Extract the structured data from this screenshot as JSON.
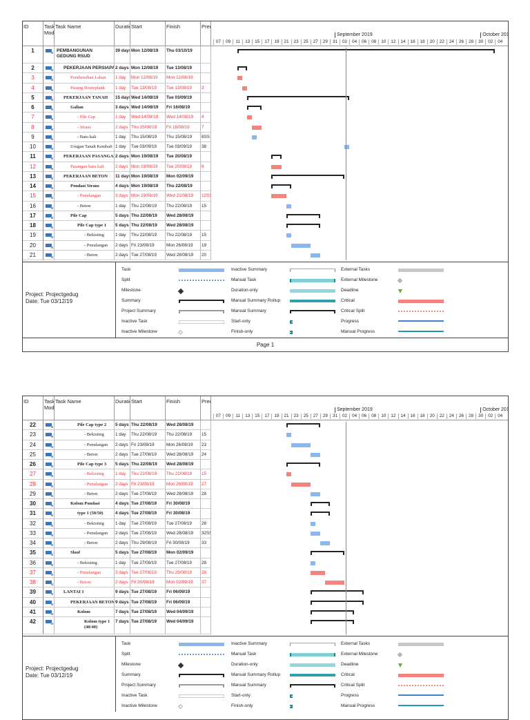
{
  "columns": {
    "id": "ID",
    "mode": "Task Mode",
    "name": "Task Name",
    "duration": "Duration",
    "start": "Start",
    "finish": "Finish",
    "pred": "Predecessors"
  },
  "timeline": {
    "months": [
      {
        "label": "September 2019",
        "date": "01/09/19"
      },
      {
        "label": "October 2019",
        "date": "01/10/19"
      }
    ],
    "day_ticks": [
      "07",
      "09",
      "11",
      "13",
      "15",
      "17",
      "19",
      "21",
      "23",
      "25",
      "27",
      "29",
      "31",
      "02",
      "04",
      "06",
      "08",
      "10",
      "12",
      "14",
      "16",
      "18",
      "20",
      "22",
      "24",
      "26",
      "28",
      "30",
      "02",
      "04"
    ],
    "first_tick_date": "07/08/19"
  },
  "colors": {
    "task": "#8ab8ec",
    "critical": "#f4837d",
    "summary": "#222222",
    "critical_text": "#f0323a"
  },
  "project": {
    "name": "Project: Projectgedug",
    "date": "Date: Tue 03/12/19"
  },
  "legend": [
    {
      "label": "Task",
      "type": "task"
    },
    {
      "label": "Split",
      "type": "split"
    },
    {
      "label": "Milestone",
      "type": "milestone"
    },
    {
      "label": "Summary",
      "type": "summary"
    },
    {
      "label": "Project Summary",
      "type": "project-summary"
    },
    {
      "label": "Inactive Task",
      "type": "inactive-task"
    },
    {
      "label": "Inactive Milestone",
      "type": "inactive-milestone"
    },
    {
      "label": "Inactive Summary",
      "type": "inactive-summary"
    },
    {
      "label": "Manual Task",
      "type": "manual-task"
    },
    {
      "label": "Duration-only",
      "type": "duration-only"
    },
    {
      "label": "Manual Summary Rollup",
      "type": "manual-summary-rollup"
    },
    {
      "label": "Manual Summary",
      "type": "manual-summary"
    },
    {
      "label": "Start-only",
      "type": "start-only"
    },
    {
      "label": "Finish-only",
      "type": "finish-only"
    },
    {
      "label": "External Tasks",
      "type": "external-tasks"
    },
    {
      "label": "External Milestone",
      "type": "external-milestone"
    },
    {
      "label": "Deadline",
      "type": "deadline"
    },
    {
      "label": "Critical",
      "type": "critical"
    },
    {
      "label": "Critical Split",
      "type": "critical-split"
    },
    {
      "label": "Progress",
      "type": "progress"
    },
    {
      "label": "Manual Progress",
      "type": "manual-progress"
    }
  ],
  "pages": [
    {
      "label": "Page 1",
      "tasks": [
        {
          "id": "1",
          "name": "PEMBANGUNAN GEDUNG RSUD",
          "duration": "39 days",
          "start": "Mon 12/08/19",
          "finish": "Thu 03/10/19",
          "pred": "",
          "kind": "summary",
          "level": 0
        },
        {
          "id": "2",
          "name": "PEKERJAAN PERSIAPAN",
          "duration": "2 days",
          "start": "Mon 12/08/19",
          "finish": "Tue 13/08/19",
          "pred": "",
          "kind": "summary",
          "level": 1
        },
        {
          "id": "3",
          "name": "Pembersihan Lahan",
          "duration": "1 day",
          "start": "Mon 12/08/19",
          "finish": "Mon 12/08/19",
          "pred": "",
          "kind": "critical",
          "level": 2
        },
        {
          "id": "4",
          "name": "Pasang Bouwplank",
          "duration": "1 day",
          "start": "Tue 13/08/19",
          "finish": "Tue 13/08/19",
          "pred": "3",
          "kind": "critical",
          "level": 2
        },
        {
          "id": "5",
          "name": "PEKERJAAN TANAH",
          "duration": "15 days",
          "start": "Wed 14/08/19",
          "finish": "Tue 03/09/19",
          "pred": "",
          "kind": "summary",
          "level": 1
        },
        {
          "id": "6",
          "name": "Galian",
          "duration": "3 days",
          "start": "Wed 14/08/19",
          "finish": "Fri 16/08/19",
          "pred": "",
          "kind": "summary",
          "level": 2
        },
        {
          "id": "7",
          "name": "- Pile Cap",
          "duration": "1 day",
          "start": "Wed 14/08/19",
          "finish": "Wed 14/08/19",
          "pred": "4",
          "kind": "critical",
          "level": 3
        },
        {
          "id": "8",
          "name": "- Straus",
          "duration": "2 days",
          "start": "Thu 15/08/19",
          "finish": "Fri 16/08/19",
          "pred": "7",
          "kind": "critical",
          "level": 3
        },
        {
          "id": "9",
          "name": "- Batu kali",
          "duration": "1 day",
          "start": "Thu 15/08/19",
          "finish": "Thu 15/08/19",
          "pred": "8SS",
          "kind": "task",
          "level": 3
        },
        {
          "id": "10",
          "name": "Urugan Tanah Kembali",
          "duration": "1 day",
          "start": "Tue 03/09/19",
          "finish": "Tue 03/09/19",
          "pred": "38",
          "kind": "task",
          "level": 2
        },
        {
          "id": "11",
          "name": "PEKERJAAN PASANGAN",
          "duration": "2 days",
          "start": "Mon 19/08/19",
          "finish": "Tue 20/08/19",
          "pred": "",
          "kind": "summary",
          "level": 1
        },
        {
          "id": "12",
          "name": "Pasangan batu kali",
          "duration": "2 days",
          "start": "Mon 19/08/19",
          "finish": "Tue 20/08/19",
          "pred": "8",
          "kind": "critical",
          "level": 2
        },
        {
          "id": "13",
          "name": "PEKERJAAN BETON",
          "duration": "11 days",
          "start": "Mon 19/08/19",
          "finish": "Mon 02/09/19",
          "pred": "",
          "kind": "summary",
          "level": 1
        },
        {
          "id": "14",
          "name": "Pondasi Straus",
          "duration": "4 days",
          "start": "Mon 19/08/19",
          "finish": "Thu 22/08/19",
          "pred": "",
          "kind": "summary",
          "level": 2
        },
        {
          "id": "15",
          "name": "- Penulangan",
          "duration": "3 days",
          "start": "Mon 19/08/19",
          "finish": "Wed 21/08/19",
          "pred": "12SS",
          "kind": "critical",
          "level": 3
        },
        {
          "id": "16",
          "name": "- Beton",
          "duration": "1 day",
          "start": "Thu 22/08/19",
          "finish": "Thu 22/08/19",
          "pred": "15",
          "kind": "task",
          "level": 3
        },
        {
          "id": "17",
          "name": "Pile Cap",
          "duration": "5 days",
          "start": "Thu 22/08/19",
          "finish": "Wed 28/08/19",
          "pred": "",
          "kind": "summary",
          "level": 2
        },
        {
          "id": "18",
          "name": "Pile Cap type 1",
          "duration": "5 days",
          "start": "Thu 22/08/19",
          "finish": "Wed 28/08/19",
          "pred": "",
          "kind": "summary",
          "level": 3
        },
        {
          "id": "19",
          "name": "- Bekisting",
          "duration": "1 day",
          "start": "Thu 22/08/19",
          "finish": "Thu 22/08/19",
          "pred": "15",
          "kind": "task",
          "level": 4
        },
        {
          "id": "20",
          "name": "- Penulangan",
          "duration": "2 days",
          "start": "Fri 23/08/19",
          "finish": "Mon 26/08/19",
          "pred": "19",
          "kind": "task",
          "level": 4
        },
        {
          "id": "21",
          "name": "- Beton",
          "duration": "2 days",
          "start": "Tue 27/08/19",
          "finish": "Wed 28/08/19",
          "pred": "20",
          "kind": "task",
          "level": 4
        }
      ]
    },
    {
      "label": "",
      "tasks": [
        {
          "id": "22",
          "name": "Pile Cap type 2",
          "duration": "5 days",
          "start": "Thu 22/08/19",
          "finish": "Wed 28/08/19",
          "pred": "",
          "kind": "summary",
          "level": 3
        },
        {
          "id": "23",
          "name": "- Bekisting",
          "duration": "1 day",
          "start": "Thu 22/08/19",
          "finish": "Thu 22/08/19",
          "pred": "15",
          "kind": "task",
          "level": 4
        },
        {
          "id": "24",
          "name": "- Penulangan",
          "duration": "2 days",
          "start": "Fri 23/08/19",
          "finish": "Mon 26/08/19",
          "pred": "23",
          "kind": "task",
          "level": 4
        },
        {
          "id": "25",
          "name": "- Beton",
          "duration": "2 days",
          "start": "Tue 27/08/19",
          "finish": "Wed 28/08/19",
          "pred": "24",
          "kind": "task",
          "level": 4
        },
        {
          "id": "26",
          "name": "Pile Cap type 3",
          "duration": "5 days",
          "start": "Thu 22/08/19",
          "finish": "Wed 28/08/19",
          "pred": "",
          "kind": "summary",
          "level": 3
        },
        {
          "id": "27",
          "name": "- Bekisting",
          "duration": "1 day",
          "start": "Thu 22/08/19",
          "finish": "Thu 22/08/19",
          "pred": "15",
          "kind": "critical",
          "level": 4
        },
        {
          "id": "28",
          "name": "- Penulangan",
          "duration": "2 days",
          "start": "Fri 23/08/19",
          "finish": "Mon 26/08/19",
          "pred": "27",
          "kind": "critical",
          "level": 4
        },
        {
          "id": "29",
          "name": "- Beton",
          "duration": "2 days",
          "start": "Tue 27/08/19",
          "finish": "Wed 28/08/19",
          "pred": "28",
          "kind": "task",
          "level": 4
        },
        {
          "id": "30",
          "name": "Kolom Pondasi",
          "duration": "4 days",
          "start": "Tue 27/08/19",
          "finish": "Fri 30/08/19",
          "pred": "",
          "kind": "summary",
          "level": 2
        },
        {
          "id": "31",
          "name": "type 1 (50/50)",
          "duration": "4 days",
          "start": "Tue 27/08/19",
          "finish": "Fri 30/08/19",
          "pred": "",
          "kind": "summary",
          "level": 3
        },
        {
          "id": "32",
          "name": "- Bekisting",
          "duration": "1 day",
          "start": "Tue 27/08/19",
          "finish": "Tue 27/08/19",
          "pred": "28",
          "kind": "task",
          "level": 4
        },
        {
          "id": "33",
          "name": "- Penulangan",
          "duration": "2 days",
          "start": "Tue 27/08/19",
          "finish": "Wed 28/08/19",
          "pred": "32SS",
          "kind": "task",
          "level": 4
        },
        {
          "id": "34",
          "name": "- Beton",
          "duration": "2 days",
          "start": "Thu 29/08/19",
          "finish": "Fri 30/08/19",
          "pred": "33",
          "kind": "task",
          "level": 4
        },
        {
          "id": "35",
          "name": "Sloof",
          "duration": "5 days",
          "start": "Tue 27/08/19",
          "finish": "Mon 02/09/19",
          "pred": "",
          "kind": "summary",
          "level": 2
        },
        {
          "id": "36",
          "name": "- Bekisting",
          "duration": "1 day",
          "start": "Tue 27/08/19",
          "finish": "Tue 27/08/19",
          "pred": "28",
          "kind": "task",
          "level": 3
        },
        {
          "id": "37",
          "name": "- Penulangan",
          "duration": "3 days",
          "start": "Tue 27/08/19",
          "finish": "Thu 29/08/19",
          "pred": "28",
          "kind": "critical",
          "level": 3
        },
        {
          "id": "38",
          "name": "- Beton",
          "duration": "2 days",
          "start": "Fri 30/08/19",
          "finish": "Mon 02/09/19",
          "pred": "37",
          "kind": "critical",
          "level": 3
        },
        {
          "id": "39",
          "name": "LANTAI 1",
          "duration": "9 days",
          "start": "Tue 27/08/19",
          "finish": "Fri 06/09/19",
          "pred": "",
          "kind": "summary",
          "level": 1
        },
        {
          "id": "40",
          "name": "PEKERJAAN BETON",
          "duration": "9 days",
          "start": "Tue 27/08/19",
          "finish": "Fri 06/09/19",
          "pred": "",
          "kind": "summary",
          "level": 2
        },
        {
          "id": "41",
          "name": "Kolom",
          "duration": "7 days",
          "start": "Tue 27/08/19",
          "finish": "Wed 04/09/19",
          "pred": "",
          "kind": "summary",
          "level": 3
        },
        {
          "id": "42",
          "name": "Kolom type 1 (40/40)",
          "duration": "7 days",
          "start": "Tue 27/08/19",
          "finish": "Wed 04/09/19",
          "pred": "",
          "kind": "summary",
          "level": 4
        }
      ]
    }
  ]
}
